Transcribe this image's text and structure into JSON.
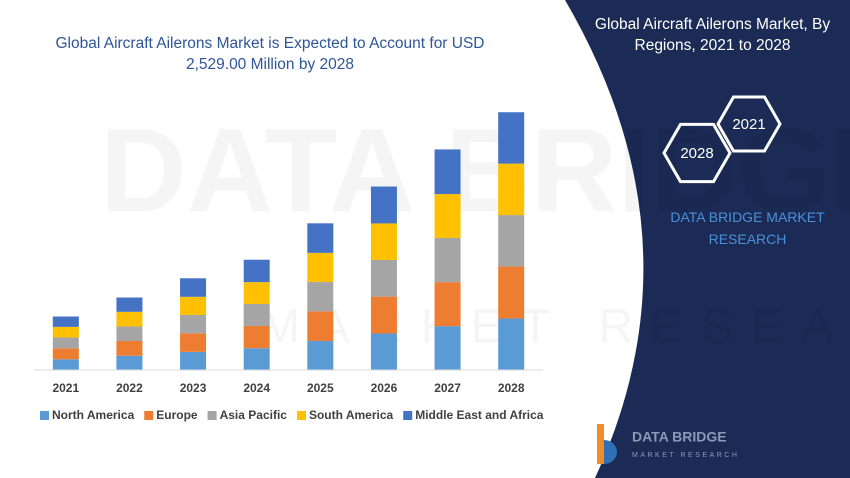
{
  "chart_data": {
    "type": "stacked-bar",
    "title": "Global Aircraft Ailerons Market is Expected to Account for USD 2,529.00 Million by 2028",
    "categories": [
      "2021",
      "2022",
      "2023",
      "2024",
      "2025",
      "2026",
      "2027",
      "2028"
    ],
    "series": [
      {
        "name": "North America",
        "color": "#5b9bd5",
        "values": [
          105,
          140,
          178,
          214,
          285,
          358,
          430,
          505
        ]
      },
      {
        "name": "Europe",
        "color": "#ed7d31",
        "values": [
          108,
          145,
          182,
          218,
          290,
          362,
          432,
          510
        ]
      },
      {
        "name": "Asia Pacific",
        "color": "#a5a5a5",
        "values": [
          106,
          142,
          180,
          216,
          288,
          360,
          434,
          505
        ]
      },
      {
        "name": "South America",
        "color": "#ffc000",
        "values": [
          104,
          144,
          178,
          214,
          286,
          358,
          430,
          505
        ]
      },
      {
        "name": "Middle East and Africa",
        "color": "#4472c4",
        "values": [
          102,
          140,
          182,
          220,
          290,
          362,
          438,
          504
        ]
      }
    ],
    "ylim": [
      0,
      2600
    ],
    "legend": "bottom"
  },
  "panel": {
    "title": "Global Aircraft Ailerons Market, By Regions, 2021 to 2028",
    "hex_start": "2021",
    "hex_end": "2028",
    "brand": "DATA BRIDGE MARKET RESEARCH"
  },
  "logo": {
    "name": "DATA BRIDGE",
    "tagline": "MARKET RESEARCH"
  },
  "watermark": {
    "line1": "DATA BRIDGE",
    "line2": "MARKET RESEARCH"
  }
}
